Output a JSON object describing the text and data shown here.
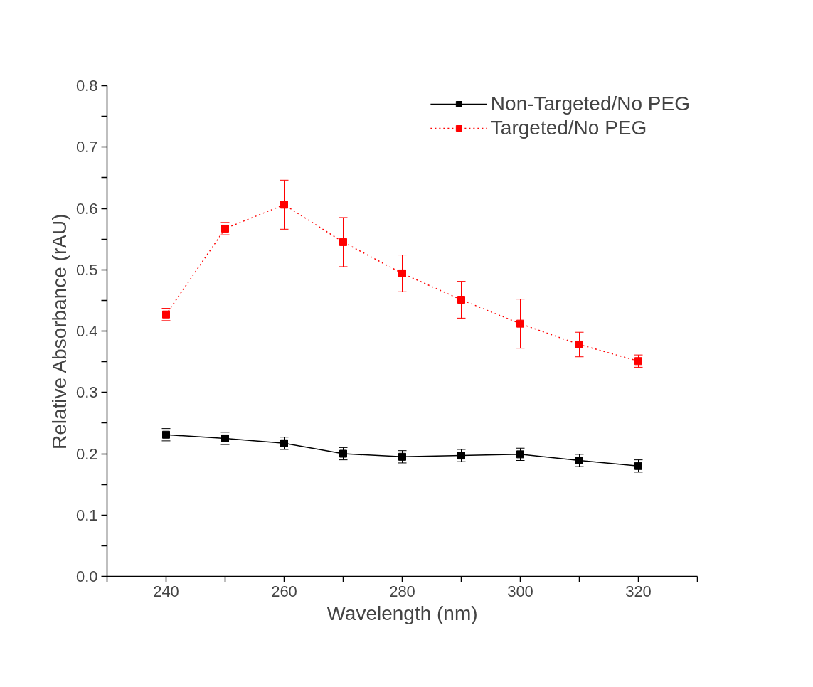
{
  "chart_data": {
    "type": "line",
    "xlabel": "Wavelength (nm)",
    "ylabel": "Relative Absorbance (rAU)",
    "x": [
      240,
      250,
      260,
      270,
      280,
      290,
      300,
      310,
      320
    ],
    "series": [
      {
        "name": "Non-Targeted/No PEG",
        "color": "#000000",
        "line_style": "solid",
        "values": [
          0.231,
          0.225,
          0.217,
          0.2,
          0.195,
          0.197,
          0.199,
          0.189,
          0.18
        ],
        "errors": [
          0.01,
          0.01,
          0.01,
          0.01,
          0.01,
          0.01,
          0.01,
          0.01,
          0.01
        ]
      },
      {
        "name": "Targeted/No PEG",
        "color": "#ff0000",
        "line_style": "dotted",
        "values": [
          0.427,
          0.567,
          0.606,
          0.545,
          0.494,
          0.451,
          0.412,
          0.378,
          0.351
        ],
        "errors": [
          0.01,
          0.01,
          0.04,
          0.04,
          0.03,
          0.03,
          0.04,
          0.02,
          0.01
        ]
      }
    ],
    "xlim": [
      230,
      330
    ],
    "ylim": [
      0,
      0.8
    ],
    "xticks": [
      {
        "value": 230,
        "label": null
      },
      240,
      {
        "value": 250,
        "label": null
      },
      260,
      {
        "value": 270,
        "label": null
      },
      280,
      {
        "value": 290,
        "label": null
      },
      300,
      {
        "value": 310,
        "label": null
      },
      320,
      {
        "value": 330,
        "label": null
      }
    ],
    "yticks": [
      {
        "value": 0,
        "label": "0.0"
      },
      {
        "value": 0.05,
        "label": null
      },
      0.1,
      {
        "value": 0.15,
        "label": null
      },
      0.2,
      {
        "value": 0.25,
        "label": null
      },
      0.3,
      {
        "value": 0.35,
        "label": null
      },
      0.4,
      {
        "value": 0.45,
        "label": null
      },
      0.5,
      {
        "value": 0.55,
        "label": null
      },
      0.6,
      {
        "value": 0.65,
        "label": null
      },
      0.7,
      {
        "value": 0.75,
        "label": null
      },
      0.8
    ],
    "marker": "square",
    "grid": false,
    "legend": "top right"
  }
}
